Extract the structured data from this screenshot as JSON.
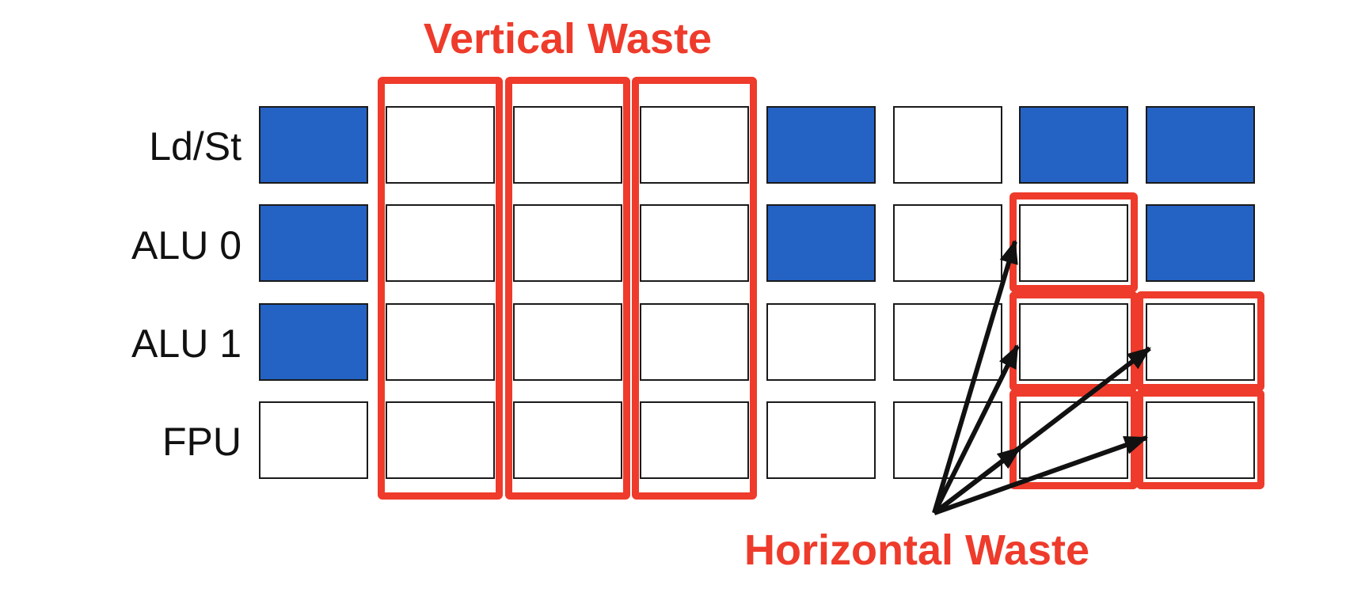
{
  "diagram": {
    "title_vertical": "Vertical Waste",
    "title_horizontal": "Horizontal Waste",
    "rows": [
      {
        "label": "Ld/St",
        "cells": [
          true,
          false,
          false,
          false,
          true,
          false,
          true,
          true
        ]
      },
      {
        "label": "ALU 0",
        "cells": [
          true,
          false,
          false,
          false,
          true,
          false,
          false,
          true
        ]
      },
      {
        "label": "ALU 1",
        "cells": [
          true,
          false,
          false,
          false,
          false,
          false,
          false,
          false
        ]
      },
      {
        "label": "FPU",
        "cells": [
          false,
          false,
          false,
          false,
          false,
          false,
          false,
          false
        ]
      }
    ],
    "vertical_waste_columns": [
      1,
      2,
      3
    ],
    "horizontal_waste_cells": [
      [
        1,
        6
      ],
      [
        2,
        6
      ],
      [
        2,
        7
      ],
      [
        3,
        6
      ],
      [
        3,
        7
      ]
    ],
    "colors": {
      "busy": "#2462c4",
      "empty": "#ffffff",
      "highlight": "#ee3b2b",
      "arrow": "#111111",
      "text": "#111111"
    }
  }
}
